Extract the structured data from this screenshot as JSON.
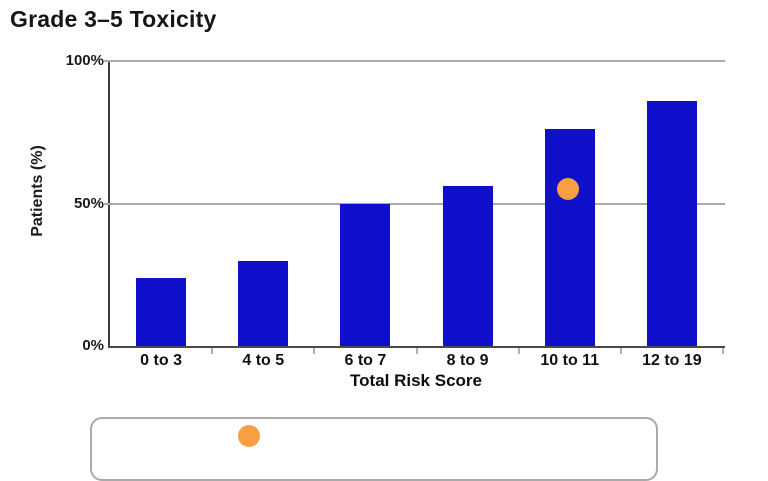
{
  "chart_data": {
    "type": "bar",
    "title": "Grade 3–5 Toxicity",
    "xlabel": "Total Risk Score",
    "ylabel": "Patients (%)",
    "categories": [
      "0 to 3",
      "4 to 5",
      "6 to 7",
      "8 to 9",
      "10 to 11",
      "12 to 19"
    ],
    "values": [
      24,
      30,
      50,
      56,
      76,
      86
    ],
    "ylim": [
      0,
      100
    ],
    "yticks": [
      {
        "label": "0%",
        "value": 0
      },
      {
        "label": "50%",
        "value": 50
      },
      {
        "label": "100%",
        "value": 100
      }
    ],
    "grid": "horizontal gridlines at 50% and 100%",
    "legend_position": "bottom (partially cut off at image edge)",
    "bar_color": "#1010cc",
    "marker": {
      "type": "point",
      "category": "10 to 11",
      "value": 55,
      "color": "#f8a041"
    }
  }
}
